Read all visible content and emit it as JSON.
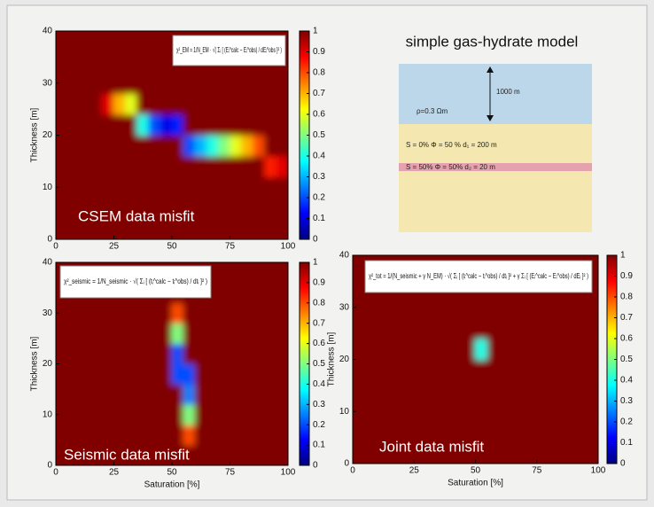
{
  "chart_data": [
    {
      "type": "heatmap",
      "formula": "χ²_EM = 1/N_EM · √( Σᵢ [ (Eᵢ^calc − Eᵢ^obs) / dEᵢ^obs ]² )",
      "annotation": "CSEM data misfit",
      "ylabel": "Thickness [m]",
      "colormap": "jet",
      "xbins": [
        0,
        5,
        10,
        15,
        20,
        25,
        30,
        35,
        40,
        45,
        50,
        55,
        60,
        65,
        70,
        75,
        80,
        85,
        90,
        95,
        100
      ],
      "ybins": [
        0,
        4,
        8,
        12,
        16,
        20,
        24,
        28,
        32,
        36,
        40
      ],
      "z": [
        [
          1,
          1,
          1,
          1,
          1,
          1,
          1,
          1,
          1,
          1,
          1,
          1,
          1,
          1,
          1,
          1,
          1,
          1,
          1,
          1
        ],
        [
          1,
          1,
          1,
          1,
          1,
          1,
          1,
          1,
          1,
          1,
          1,
          1,
          1,
          1,
          1,
          1,
          1,
          1,
          1,
          1
        ],
        [
          1,
          1,
          1,
          1,
          1,
          1,
          1,
          1,
          1,
          1,
          1,
          1,
          1,
          1,
          1,
          1,
          1,
          1,
          1,
          1
        ],
        [
          1,
          1,
          1,
          1,
          1,
          1,
          1,
          1,
          1,
          1,
          1,
          1,
          1,
          1,
          1,
          1,
          1,
          1,
          0.85,
          0.9
        ],
        [
          1,
          1,
          1,
          1,
          1,
          1,
          1,
          1,
          1,
          1,
          1,
          0.2,
          0.3,
          0.4,
          0.5,
          0.6,
          0.7,
          0.8,
          1,
          1
        ],
        [
          1,
          1,
          1,
          1,
          1,
          1,
          1,
          0.4,
          0.2,
          0.1,
          0.15,
          1,
          1,
          1,
          1,
          1,
          1,
          1,
          1,
          1
        ],
        [
          1,
          1,
          1,
          1,
          0.9,
          0.7,
          0.6,
          1,
          1,
          1,
          1,
          1,
          1,
          1,
          1,
          1,
          1,
          1,
          1,
          1
        ],
        [
          1,
          1,
          1,
          1,
          1,
          1,
          1,
          1,
          1,
          1,
          1,
          1,
          1,
          1,
          1,
          1,
          1,
          1,
          1,
          1
        ],
        [
          1,
          1,
          1,
          1,
          1,
          1,
          1,
          1,
          1,
          1,
          1,
          1,
          1,
          1,
          1,
          1,
          1,
          1,
          1,
          1
        ],
        [
          1,
          1,
          1,
          1,
          1,
          1,
          1,
          1,
          1,
          1,
          1,
          1,
          1,
          1,
          1,
          1,
          1,
          1,
          1,
          1
        ]
      ],
      "xlim": [
        0,
        100
      ],
      "ylim": [
        0,
        40
      ],
      "xticks": [
        0,
        25,
        50,
        75,
        100
      ],
      "yticks": [
        0,
        10,
        20,
        30,
        40
      ],
      "clim": [
        0,
        1
      ],
      "cticks": [
        0,
        0.1,
        0.2,
        0.3,
        0.4,
        0.5,
        0.6,
        0.7,
        0.8,
        0.9,
        1
      ]
    },
    {
      "type": "heatmap",
      "formula": "χ²_seismic = 1/N_seismic · √( Σᵢ [ (tᵢ^calc − tᵢ^obs) / dtᵢ ]² )",
      "annotation": "Seismic data misfit",
      "xlabel": "Saturation [%]",
      "ylabel": "Thickness [m]",
      "colormap": "jet",
      "xbins": [
        0,
        5,
        10,
        15,
        20,
        25,
        30,
        35,
        40,
        45,
        50,
        55,
        60,
        65,
        70,
        75,
        80,
        85,
        90,
        95,
        100
      ],
      "ybins": [
        0,
        4,
        8,
        12,
        16,
        20,
        24,
        28,
        32,
        36,
        40
      ],
      "z": [
        [
          1,
          1,
          1,
          1,
          1,
          1,
          1,
          1,
          1,
          1,
          1,
          1,
          1,
          1,
          1,
          1,
          1,
          1,
          1,
          1
        ],
        [
          1,
          1,
          1,
          1,
          1,
          1,
          1,
          1,
          1,
          1,
          1,
          0.8,
          1,
          1,
          1,
          1,
          1,
          1,
          1,
          1
        ],
        [
          1,
          1,
          1,
          1,
          1,
          1,
          1,
          1,
          1,
          1,
          1,
          0.5,
          1,
          1,
          1,
          1,
          1,
          1,
          1,
          1
        ],
        [
          1,
          1,
          1,
          1,
          1,
          1,
          1,
          1,
          1,
          1,
          1,
          0.25,
          1,
          1,
          1,
          1,
          1,
          1,
          1,
          1
        ],
        [
          1,
          1,
          1,
          1,
          1,
          1,
          1,
          1,
          1,
          1,
          0.2,
          0.2,
          1,
          1,
          1,
          1,
          1,
          1,
          1,
          1
        ],
        [
          1,
          1,
          1,
          1,
          1,
          1,
          1,
          1,
          1,
          1,
          0.2,
          1,
          1,
          1,
          1,
          1,
          1,
          1,
          1,
          1
        ],
        [
          1,
          1,
          1,
          1,
          1,
          1,
          1,
          1,
          1,
          1,
          0.5,
          1,
          1,
          1,
          1,
          1,
          1,
          1,
          1,
          1
        ],
        [
          1,
          1,
          1,
          1,
          1,
          1,
          1,
          1,
          1,
          1,
          0.8,
          1,
          1,
          1,
          1,
          1,
          1,
          1,
          1,
          1
        ],
        [
          1,
          1,
          1,
          1,
          1,
          1,
          1,
          1,
          1,
          1,
          1,
          1,
          1,
          1,
          1,
          1,
          1,
          1,
          1,
          1
        ],
        [
          1,
          1,
          1,
          1,
          1,
          1,
          1,
          1,
          1,
          1,
          1,
          1,
          1,
          1,
          1,
          1,
          1,
          1,
          1,
          1
        ]
      ],
      "xlim": [
        0,
        100
      ],
      "ylim": [
        0,
        40
      ],
      "xticks": [
        0,
        25,
        50,
        75,
        100
      ],
      "yticks": [
        0,
        10,
        20,
        30,
        40
      ],
      "clim": [
        0,
        1
      ],
      "cticks": [
        0,
        0.1,
        0.2,
        0.3,
        0.4,
        0.5,
        0.6,
        0.7,
        0.8,
        0.9,
        1
      ]
    },
    {
      "type": "heatmap",
      "formula": "χ²_tot = 1/(N_seismic + γ N_EM) · √( Σᵢ [ (tᵢ^calc − tᵢ^obs) / dtᵢ ]² + γ Σᵢ [ (Eᵢ^calc − Eᵢ^obs) / dEᵢ ]² )",
      "annotation": "Joint data misfit",
      "xlabel": "Saturation [%]",
      "ylabel": "Thickness [m]",
      "colormap": "jet",
      "xbins": [
        0,
        5,
        10,
        15,
        20,
        25,
        30,
        35,
        40,
        45,
        50,
        55,
        60,
        65,
        70,
        75,
        80,
        85,
        90,
        95,
        100
      ],
      "ybins": [
        0,
        4,
        8,
        12,
        16,
        20,
        24,
        28,
        32,
        36,
        40
      ],
      "z": [
        [
          1,
          1,
          1,
          1,
          1,
          1,
          1,
          1,
          1,
          1,
          1,
          1,
          1,
          1,
          1,
          1,
          1,
          1,
          1,
          1
        ],
        [
          1,
          1,
          1,
          1,
          1,
          1,
          1,
          1,
          1,
          1,
          1,
          1,
          1,
          1,
          1,
          1,
          1,
          1,
          1,
          1
        ],
        [
          1,
          1,
          1,
          1,
          1,
          1,
          1,
          1,
          1,
          1,
          1,
          1,
          1,
          1,
          1,
          1,
          1,
          1,
          1,
          1
        ],
        [
          1,
          1,
          1,
          1,
          1,
          1,
          1,
          1,
          1,
          1,
          1,
          1,
          1,
          1,
          1,
          1,
          1,
          1,
          1,
          1
        ],
        [
          1,
          1,
          1,
          1,
          1,
          1,
          1,
          1,
          1,
          1,
          1,
          1,
          1,
          1,
          1,
          1,
          1,
          1,
          1,
          1
        ],
        [
          1,
          1,
          1,
          1,
          1,
          1,
          1,
          1,
          1,
          1,
          0.4,
          1,
          1,
          1,
          1,
          1,
          1,
          1,
          1,
          1
        ],
        [
          1,
          1,
          1,
          1,
          1,
          1,
          1,
          1,
          1,
          1,
          1,
          1,
          1,
          1,
          1,
          1,
          1,
          1,
          1,
          1
        ],
        [
          1,
          1,
          1,
          1,
          1,
          1,
          1,
          1,
          1,
          1,
          1,
          1,
          1,
          1,
          1,
          1,
          1,
          1,
          1,
          1
        ],
        [
          1,
          1,
          1,
          1,
          1,
          1,
          1,
          1,
          1,
          1,
          1,
          1,
          1,
          1,
          1,
          1,
          1,
          1,
          1,
          1
        ],
        [
          1,
          1,
          1,
          1,
          1,
          1,
          1,
          1,
          1,
          1,
          1,
          1,
          1,
          1,
          1,
          1,
          1,
          1,
          1,
          1
        ]
      ],
      "xlim": [
        0,
        100
      ],
      "ylim": [
        0,
        40
      ],
      "xticks": [
        0,
        25,
        50,
        75,
        100
      ],
      "yticks": [
        0,
        10,
        20,
        30,
        40
      ],
      "clim": [
        0,
        1
      ],
      "cticks": [
        0,
        0.1,
        0.2,
        0.3,
        0.4,
        0.5,
        0.6,
        0.7,
        0.8,
        0.9,
        1
      ]
    }
  ],
  "diagram": {
    "title": "simple gas-hydrate model",
    "resistivity": "ρ=0.3 Ωm",
    "depth": "1000 m",
    "layer1": "S = 0%  Φ = 50 %   d₁ = 200 m",
    "layer2": "S = 50%  Φ = 50%   d₂ = 20 m"
  }
}
